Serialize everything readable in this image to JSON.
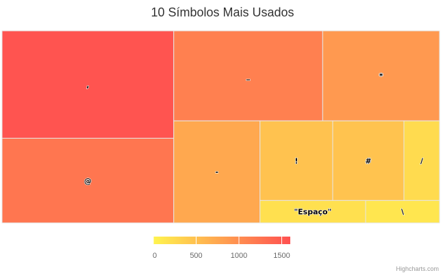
{
  "chart_data": {
    "type": "treemap",
    "title": "10 Símbolos Mais Usados",
    "points": [
      {
        "label": ",",
        "value": 1560
      },
      {
        "label": "@",
        "value": 1230
      },
      {
        "label": "_",
        "value": 1135
      },
      {
        "label": "*",
        "value": 890
      },
      {
        "label": "-",
        "value": 745
      },
      {
        "label": "!",
        "value": 490
      },
      {
        "label": "#",
        "value": 480
      },
      {
        "label": "/",
        "value": 240
      },
      {
        "label": "\"Espaço\"",
        "value": 200
      },
      {
        "label": "\\",
        "value": 140
      }
    ],
    "color_axis": {
      "min": 0,
      "max": 1600,
      "min_color": "#FFF44F",
      "max_color": "#FF5050",
      "ticks": [
        "0",
        "500",
        "1000",
        "1500"
      ]
    }
  },
  "credits": "Highcharts.com"
}
